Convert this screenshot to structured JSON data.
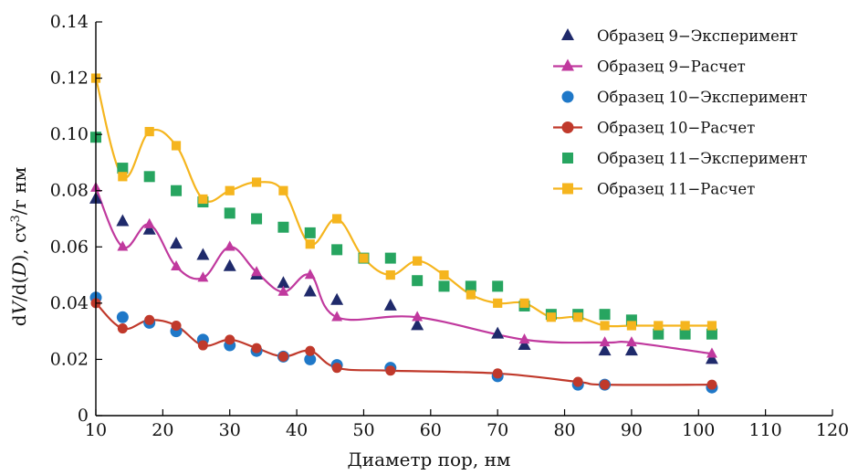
{
  "chart_data": {
    "type": "scatter",
    "xlabel": "Диаметр пор, нм",
    "ylabel_parts": [
      "d",
      "V",
      "/d(",
      "D",
      "), cv",
      "3",
      "/г нм"
    ],
    "xlim": [
      10,
      120
    ],
    "ylim": [
      0,
      0.14
    ],
    "xticks": [
      10,
      20,
      30,
      40,
      50,
      60,
      70,
      80,
      90,
      100,
      110,
      120
    ],
    "yticks": [
      "0",
      "0.02",
      "0.04",
      "0.06",
      "0.08",
      "0.10",
      "0.12",
      "0.14"
    ],
    "ytick_values": [
      0,
      0.02,
      0.04,
      0.06,
      0.08,
      0.1,
      0.12,
      0.14
    ],
    "legend_position": "top-right",
    "series": [
      {
        "name": "Образец 9−Эксперимент",
        "kind": "markers",
        "marker": "triangle",
        "color": "#1f2a6b",
        "x": [
          10,
          14,
          18,
          22,
          26,
          30,
          34,
          38,
          42,
          46,
          54,
          58,
          70,
          74,
          86,
          90,
          102
        ],
        "y": [
          0.077,
          0.069,
          0.066,
          0.061,
          0.057,
          0.053,
          0.05,
          0.047,
          0.044,
          0.041,
          0.039,
          0.032,
          0.029,
          0.025,
          0.023,
          0.023,
          0.02
        ]
      },
      {
        "name": "Образец 9−Расчет",
        "kind": "line",
        "marker": "triangle",
        "color": "#c0399e",
        "x": [
          10,
          14,
          18,
          22,
          26,
          30,
          34,
          38,
          42,
          46,
          58,
          74,
          86,
          90,
          102
        ],
        "y": [
          0.081,
          0.06,
          0.068,
          0.053,
          0.049,
          0.06,
          0.051,
          0.044,
          0.05,
          0.035,
          0.035,
          0.027,
          0.026,
          0.026,
          0.022
        ]
      },
      {
        "name": "Образец 10−Эксперимент",
        "kind": "markers",
        "marker": "circle",
        "color": "#1f78c8",
        "x": [
          10,
          14,
          18,
          22,
          26,
          30,
          34,
          38,
          42,
          46,
          54,
          70,
          82,
          86,
          102
        ],
        "y": [
          0.042,
          0.035,
          0.033,
          0.03,
          0.027,
          0.025,
          0.023,
          0.021,
          0.02,
          0.018,
          0.017,
          0.014,
          0.011,
          0.011,
          0.01
        ]
      },
      {
        "name": "Образец 10−Расчет",
        "kind": "line",
        "marker": "circle",
        "color": "#c0392b",
        "x": [
          10,
          14,
          18,
          22,
          26,
          30,
          34,
          38,
          42,
          46,
          54,
          70,
          82,
          86,
          102
        ],
        "y": [
          0.04,
          0.031,
          0.034,
          0.032,
          0.025,
          0.027,
          0.024,
          0.021,
          0.023,
          0.017,
          0.016,
          0.015,
          0.012,
          0.011,
          0.011
        ]
      },
      {
        "name": "Образец 11−Эксперимент",
        "kind": "markers",
        "marker": "square",
        "color": "#27a560",
        "x": [
          10,
          14,
          18,
          22,
          26,
          30,
          34,
          38,
          42,
          46,
          50,
          54,
          58,
          62,
          66,
          70,
          74,
          78,
          82,
          86,
          90,
          94,
          98,
          102
        ],
        "y": [
          0.099,
          0.088,
          0.085,
          0.08,
          0.076,
          0.072,
          0.07,
          0.067,
          0.065,
          0.059,
          0.056,
          0.056,
          0.048,
          0.046,
          0.046,
          0.046,
          0.039,
          0.036,
          0.036,
          0.036,
          0.034,
          0.029,
          0.029,
          0.029
        ]
      },
      {
        "name": "Образец 11−Расчет",
        "kind": "line",
        "marker": "square",
        "color": "#f5b51e",
        "x": [
          10,
          14,
          18,
          22,
          26,
          30,
          34,
          38,
          42,
          46,
          50,
          54,
          58,
          62,
          66,
          70,
          74,
          78,
          82,
          86,
          90,
          94,
          98,
          102
        ],
        "y": [
          0.12,
          0.085,
          0.101,
          0.096,
          0.077,
          0.08,
          0.083,
          0.08,
          0.061,
          0.07,
          0.056,
          0.05,
          0.055,
          0.05,
          0.043,
          0.04,
          0.04,
          0.035,
          0.035,
          0.032,
          0.032,
          0.032,
          0.032,
          0.032
        ]
      }
    ]
  }
}
